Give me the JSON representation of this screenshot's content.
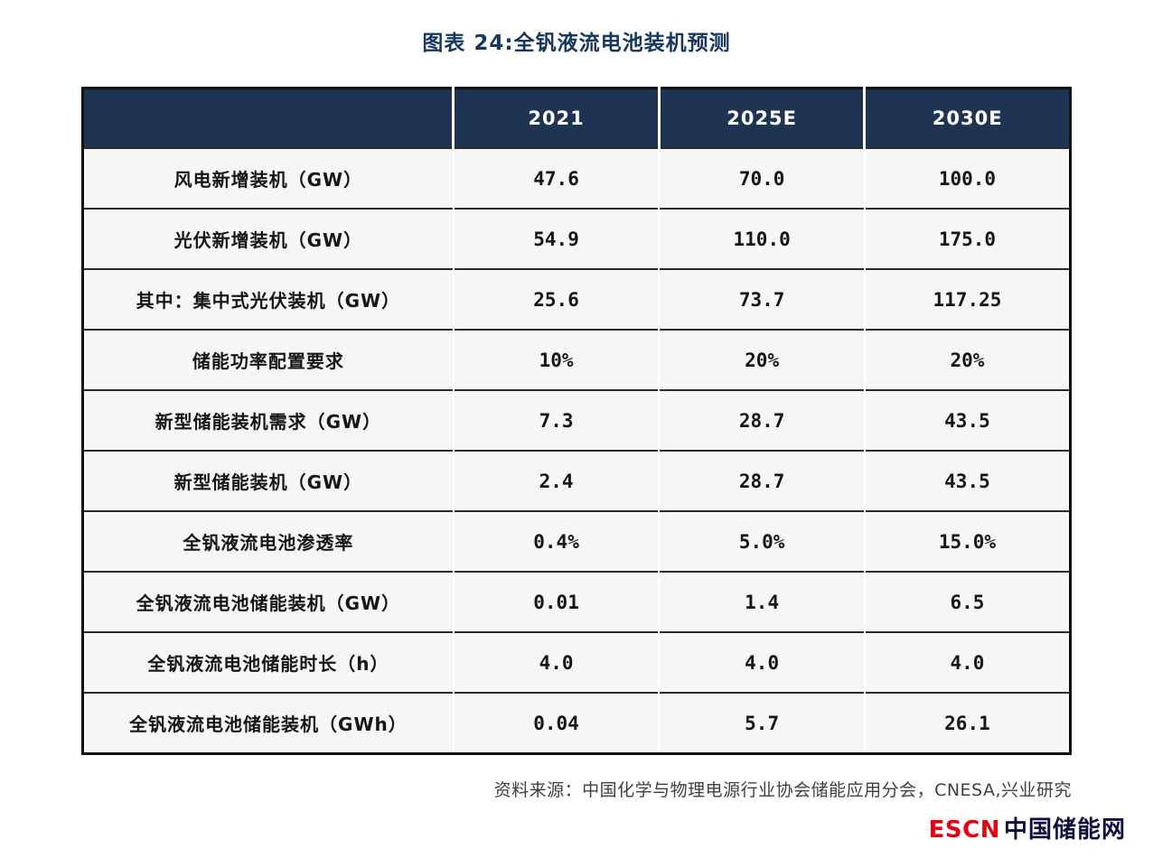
{
  "title": "图表 24:全钒液流电池装机预测",
  "table": {
    "columns": [
      "",
      "2021",
      "2025E",
      "2030E"
    ],
    "rows": [
      {
        "label": "风电新增装机（GW）",
        "values": [
          "47.6",
          "70.0",
          "100.0"
        ]
      },
      {
        "label": "光伏新增装机（GW）",
        "values": [
          "54.9",
          "110.0",
          "175.0"
        ]
      },
      {
        "label": "其中：集中式光伏装机（GW）",
        "values": [
          "25.6",
          "73.7",
          "117.25"
        ]
      },
      {
        "label": "储能功率配置要求",
        "values": [
          "10%",
          "20%",
          "20%"
        ]
      },
      {
        "label": "新型储能装机需求（GW）",
        "values": [
          "7.3",
          "28.7",
          "43.5"
        ]
      },
      {
        "label": "新型储能装机（GW）",
        "values": [
          "2.4",
          "28.7",
          "43.5"
        ]
      },
      {
        "label": "全钒液流电池渗透率",
        "values": [
          "0.4%",
          "5.0%",
          "15.0%"
        ]
      },
      {
        "label": "全钒液流电池储能装机（GW）",
        "values": [
          "0.01",
          "1.4",
          "6.5"
        ]
      },
      {
        "label": "全钒液流电池储能时长（h）",
        "values": [
          "4.0",
          "4.0",
          "4.0"
        ]
      },
      {
        "label": "全钒液流电池储能装机（GWh）",
        "values": [
          "0.04",
          "5.7",
          "26.1"
        ]
      }
    ]
  },
  "source": "资料来源：中国化学与物理电源行业协会储能应用分会，CNESA,兴业研究",
  "logo": {
    "escn": "ESCN",
    "site": "中国储能网"
  },
  "colors": {
    "title": "#17375e",
    "header_bg": "#1f3353",
    "header_text": "#ffffff",
    "row_bg": "#f5f6f5",
    "logo_red": "#e60012",
    "logo_navy": "#10103f"
  },
  "chart_data": {
    "type": "table",
    "title": "图表 24:全钒液流电池装机预测",
    "columns": [
      "2021",
      "2025E",
      "2030E"
    ],
    "row_labels": [
      "风电新增装机（GW）",
      "光伏新增装机（GW）",
      "其中：集中式光伏装机（GW）",
      "储能功率配置要求",
      "新型储能装机需求（GW）",
      "新型储能装机（GW）",
      "全钒液流电池渗透率",
      "全钒液流电池储能装机（GW）",
      "全钒液流电池储能时长（h）",
      "全钒液流电池储能装机（GWh）"
    ],
    "rows": [
      [
        "47.6",
        "70.0",
        "100.0"
      ],
      [
        "54.9",
        "110.0",
        "175.0"
      ],
      [
        "25.6",
        "73.7",
        "117.25"
      ],
      [
        "10%",
        "20%",
        "20%"
      ],
      [
        "7.3",
        "28.7",
        "43.5"
      ],
      [
        "2.4",
        "28.7",
        "43.5"
      ],
      [
        "0.4%",
        "5.0%",
        "15.0%"
      ],
      [
        "0.01",
        "1.4",
        "6.5"
      ],
      [
        "4.0",
        "4.0",
        "4.0"
      ],
      [
        "0.04",
        "5.7",
        "26.1"
      ]
    ],
    "source": "资料来源：中国化学与物理电源行业协会储能应用分会，CNESA,兴业研究"
  }
}
